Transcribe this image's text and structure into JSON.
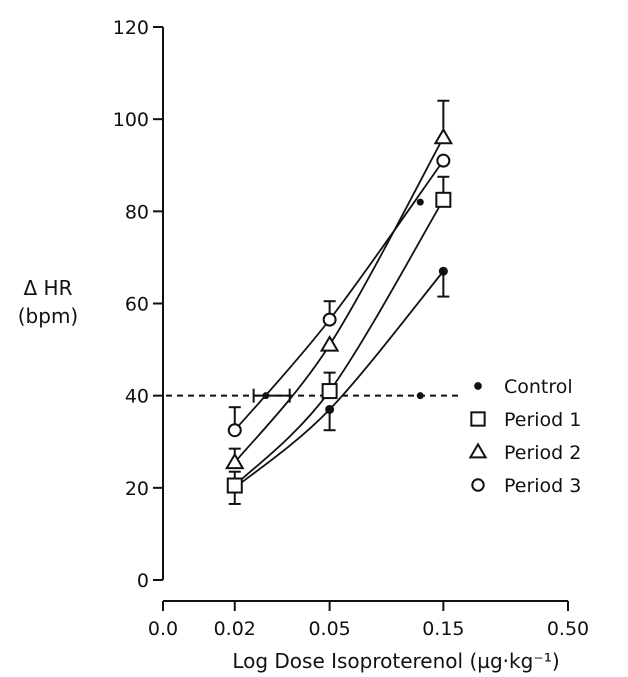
{
  "chart_data": {
    "type": "line",
    "xlabel": "Log Dose Isoproterenol (µg·kg⁻¹)",
    "ylabel_line1": "Δ HR",
    "ylabel_line2": "(bpm)",
    "x_scale": "log",
    "xlim": [
      0.01,
      0.5
    ],
    "ylim": [
      0,
      120
    ],
    "x_tick_labels": [
      "0.0",
      "0.02",
      "0.05",
      "0.15",
      "0.50"
    ],
    "x_tick_values": [
      0.01,
      0.02,
      0.05,
      0.15,
      0.5
    ],
    "y_ticks": [
      "0",
      "20",
      "40",
      "60",
      "80",
      "100",
      "120"
    ],
    "y_tick_values": [
      0,
      20,
      40,
      60,
      80,
      100,
      120
    ],
    "grid": false,
    "legend_position": "right",
    "reference_line": {
      "y": 40,
      "style": "dashed"
    },
    "ed40_points": [
      {
        "series": "Control",
        "x": 0.12
      },
      {
        "series": "Period 3",
        "x": 0.027
      }
    ],
    "ed40_error_bar": {
      "x_low": 0.024,
      "x_high": 0.034
    },
    "extra_points": [
      {
        "series": "Control",
        "x": 0.12,
        "y": 82
      }
    ],
    "series": [
      {
        "name": "Control",
        "marker": "filled-circle",
        "x": [
          0.02,
          0.05,
          0.15
        ],
        "y": [
          20,
          37,
          67
        ],
        "err": [
          3.5,
          4.5,
          5.5
        ]
      },
      {
        "name": "Period 1",
        "marker": "square",
        "x": [
          0.02,
          0.05,
          0.15
        ],
        "y": [
          20.5,
          41,
          82.5
        ],
        "err": [
          3,
          4,
          5
        ]
      },
      {
        "name": "Period 2",
        "marker": "triangle",
        "x": [
          0.02,
          0.05,
          0.15
        ],
        "y": [
          25.5,
          51,
          96
        ],
        "err": [
          3,
          0,
          8
        ]
      },
      {
        "name": "Period 3",
        "marker": "open-circle",
        "x": [
          0.02,
          0.05,
          0.15
        ],
        "y": [
          32.5,
          56.5,
          91
        ],
        "err": [
          5,
          4,
          0
        ]
      }
    ]
  }
}
